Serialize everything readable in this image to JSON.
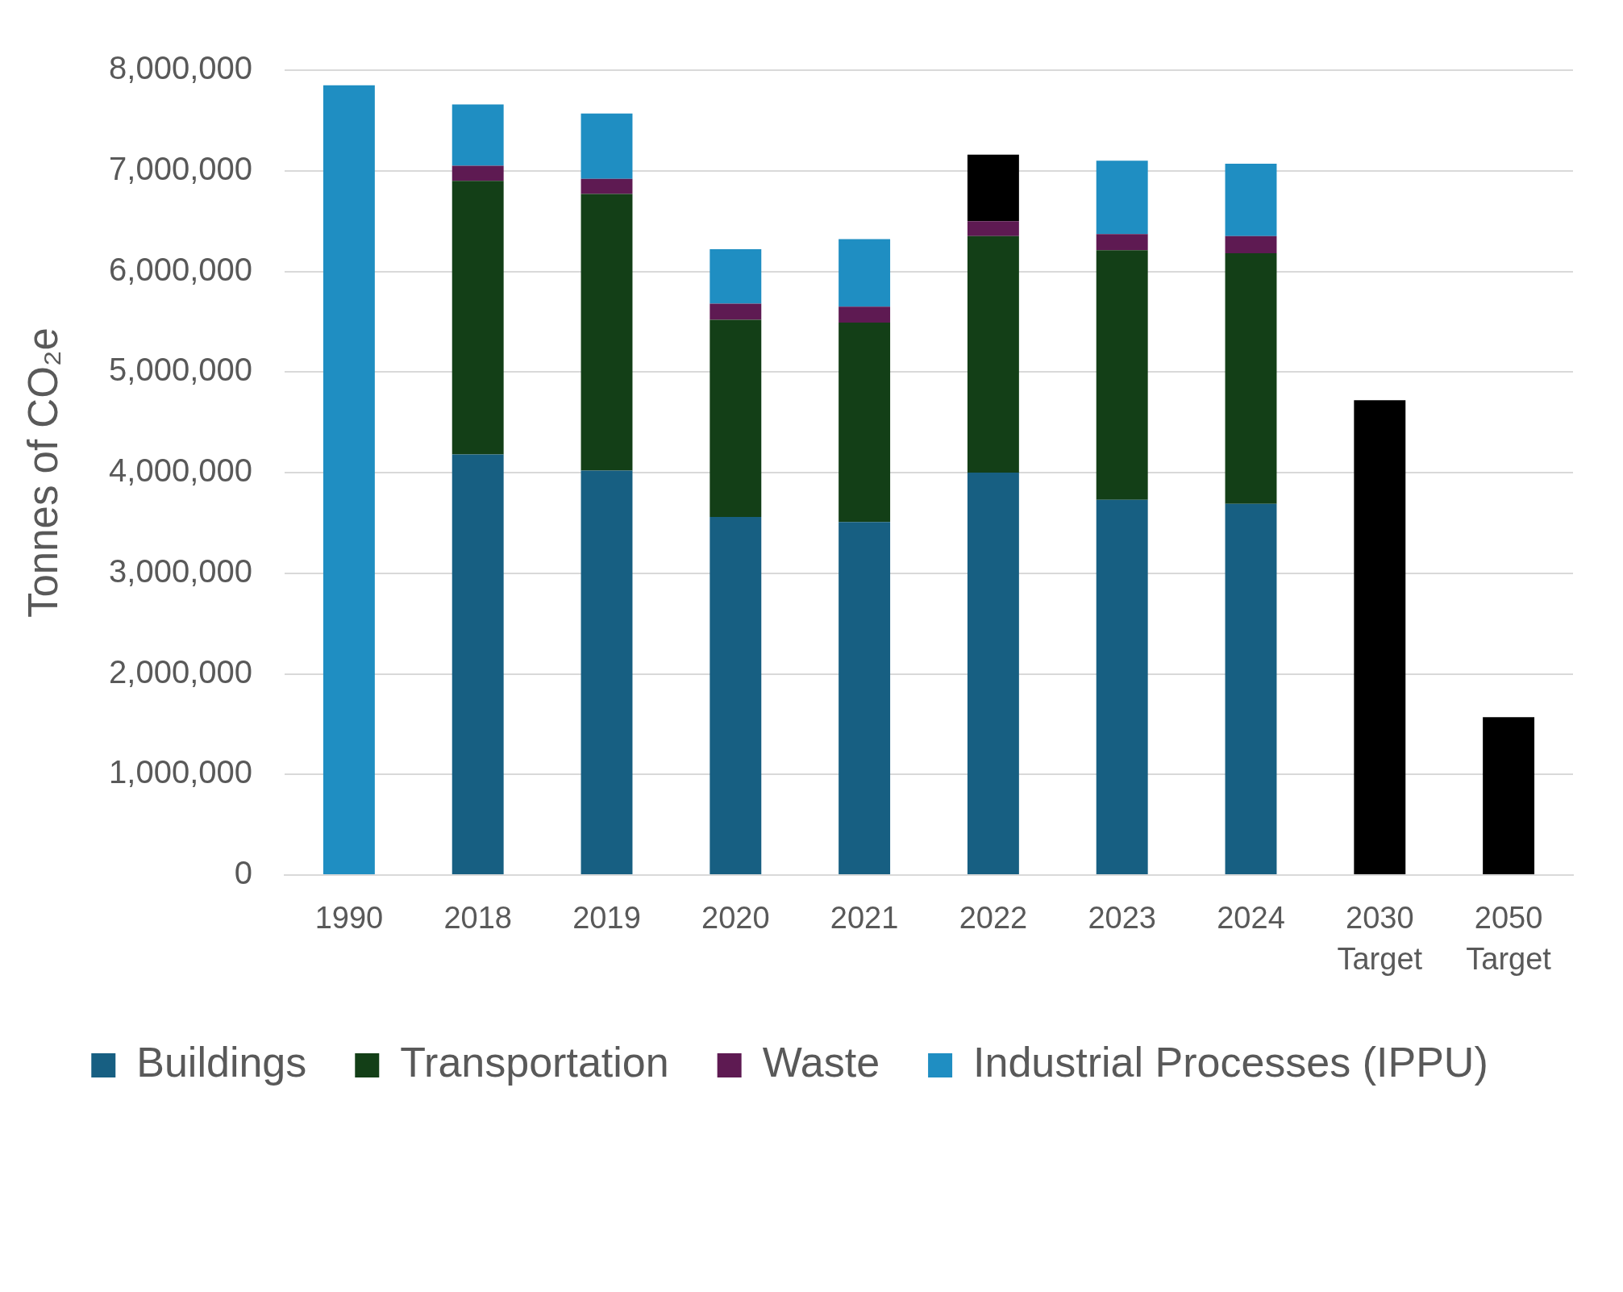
{
  "chart_data": {
    "type": "bar",
    "stacked": true,
    "ylabel": "Tonnes of CO₂e",
    "categories": [
      "1990",
      "2018",
      "2019",
      "2020",
      "2021",
      "2022",
      "2023",
      "2024",
      "2030 Target",
      "2050 Target"
    ],
    "series": [
      {
        "name": "Buildings",
        "color": "#175f82",
        "values": [
          null,
          4180000,
          4020000,
          3560000,
          3510000,
          4000000,
          3730000,
          3690000,
          null,
          null
        ]
      },
      {
        "name": "Transportation",
        "color": "#133f17",
        "values": [
          null,
          2720000,
          2750000,
          1960000,
          1980000,
          2350000,
          2480000,
          2490000,
          null,
          null
        ]
      },
      {
        "name": "Waste",
        "color": "#5e1a52",
        "values": [
          null,
          150000,
          150000,
          160000,
          160000,
          150000,
          160000,
          170000,
          null,
          null
        ]
      },
      {
        "name": "Industrial Processes (IPPU)",
        "color": "#1f8ec2",
        "colors": [
          "#1f8ec2",
          "#1f8ec2",
          "#1f8ec2",
          "#1f8ec2",
          "#1f8ec2",
          "#000000",
          "#1f8ec2",
          "#1f8ec2",
          "#000000",
          "#000000"
        ],
        "values": [
          7850000,
          610000,
          650000,
          540000,
          670000,
          660000,
          730000,
          720000,
          4720000,
          1570000
        ]
      }
    ],
    "ylim": [
      0,
      8000000
    ],
    "yticks": [
      0,
      {
        "value": 1000000,
        "label": "1,000,000"
      },
      {
        "value": 2000000,
        "label": "2,000,000"
      },
      {
        "value": 3000000,
        "label": "3,000,000"
      },
      {
        "value": 4000000,
        "label": "4,000,000"
      },
      {
        "value": 5000000,
        "label": "5,000,000"
      },
      {
        "value": 6000000,
        "label": "6,000,000"
      },
      {
        "value": 7000000,
        "label": "7,000,000"
      },
      {
        "value": 8000000,
        "label": "8,000,000"
      }
    ],
    "grid": "y",
    "legend": "bottom"
  }
}
